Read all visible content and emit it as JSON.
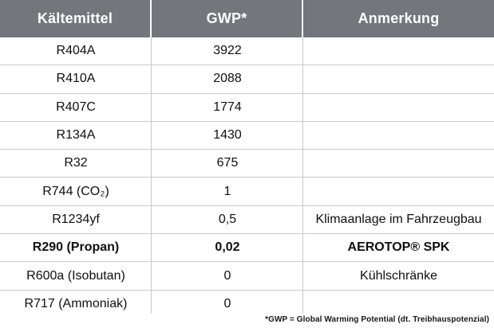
{
  "colors": {
    "header_bg": "#74767b",
    "header_text": "#ffffff",
    "divider": "#c9cacc",
    "body_text": "#0f0f0f",
    "background": "#ffffff"
  },
  "table": {
    "headers": [
      "Kältemittel",
      "GWP*",
      "Anmerkung"
    ],
    "rows": [
      {
        "refrigerant": "R404A",
        "gwp": "3922",
        "note": "",
        "bold": false
      },
      {
        "refrigerant": "R410A",
        "gwp": "2088",
        "note": "",
        "bold": false
      },
      {
        "refrigerant": "R407C",
        "gwp": "1774",
        "note": "",
        "bold": false
      },
      {
        "refrigerant": "R134A",
        "gwp": "1430",
        "note": "",
        "bold": false
      },
      {
        "refrigerant": "R32",
        "gwp": "675",
        "note": "",
        "bold": false
      },
      {
        "refrigerant": "R744 (CO₂)",
        "gwp": "1",
        "note": "",
        "bold": false
      },
      {
        "refrigerant": "R1234yf",
        "gwp": "0,5",
        "note": "Klimaanlage im Fahrzeugbau",
        "bold": false
      },
      {
        "refrigerant": "R290 (Propan)",
        "gwp": "0,02",
        "note": "AEROTOP® SPK",
        "bold": true
      },
      {
        "refrigerant": "R600a (Isobutan)",
        "gwp": "0",
        "note": "Kühlschränke",
        "bold": false
      },
      {
        "refrigerant": "R717 (Ammoniak)",
        "gwp": "0",
        "note": "",
        "bold": false
      }
    ],
    "footnote": "*GWP = Global Warming Potential (dt. Treibhauspotenzial)"
  }
}
